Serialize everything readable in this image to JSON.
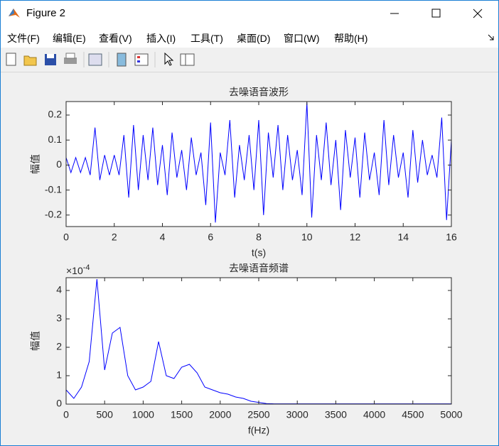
{
  "window": {
    "title": "Figure 2",
    "menu": [
      "文件(F)",
      "编辑(E)",
      "查看(V)",
      "插入(I)",
      "工具(T)",
      "桌面(D)",
      "窗口(W)",
      "帮助(H)"
    ]
  },
  "chart_data": [
    {
      "type": "line",
      "title": "去噪语音波形",
      "x_label": "t(s)",
      "y_label": "幅值",
      "color": "#0000ff",
      "x": [
        0,
        0.2,
        0.4,
        0.6,
        0.8,
        1.0,
        1.2,
        1.4,
        1.6,
        1.8,
        2.0,
        2.2,
        2.4,
        2.6,
        2.8,
        3.0,
        3.2,
        3.4,
        3.6,
        3.8,
        4.0,
        4.2,
        4.4,
        4.6,
        4.8,
        5.0,
        5.2,
        5.4,
        5.6,
        5.8,
        6.0,
        6.2,
        6.4,
        6.6,
        6.8,
        7.0,
        7.2,
        7.4,
        7.6,
        7.8,
        8.0,
        8.2,
        8.4,
        8.6,
        8.8,
        9.0,
        9.2,
        9.4,
        9.6,
        9.8,
        10.0,
        10.2,
        10.4,
        10.6,
        10.8,
        11.0,
        11.2,
        11.4,
        11.6,
        11.8,
        12.0,
        12.2,
        12.4,
        12.6,
        12.8,
        13.0,
        13.2,
        13.4,
        13.6,
        13.8,
        14.0,
        14.2,
        14.4,
        14.6,
        14.8,
        15.0,
        15.2,
        15.4,
        15.6,
        15.8,
        16.0
      ],
      "values": [
        0.03,
        -0.03,
        0.03,
        -0.03,
        0.03,
        -0.04,
        0.15,
        -0.06,
        0.04,
        -0.04,
        0.04,
        -0.04,
        0.12,
        -0.13,
        0.16,
        -0.1,
        0.12,
        -0.06,
        0.15,
        -0.08,
        0.08,
        -0.12,
        0.13,
        -0.05,
        0.06,
        -0.1,
        0.11,
        -0.04,
        0.05,
        -0.16,
        0.17,
        -0.23,
        0.05,
        -0.04,
        0.18,
        -0.13,
        0.08,
        -0.06,
        0.12,
        -0.1,
        0.18,
        -0.2,
        0.13,
        -0.05,
        0.16,
        -0.1,
        0.12,
        -0.06,
        0.06,
        -0.12,
        0.25,
        -0.21,
        0.12,
        -0.06,
        0.17,
        -0.08,
        0.1,
        -0.18,
        0.14,
        -0.05,
        0.11,
        -0.13,
        0.13,
        -0.06,
        0.05,
        -0.12,
        0.18,
        -0.08,
        0.12,
        -0.05,
        0.05,
        -0.13,
        0.14,
        -0.07,
        0.1,
        -0.04,
        0.04,
        -0.05,
        0.19,
        -0.22,
        0.1
      ],
      "xlim": [
        0,
        16
      ],
      "xticks": [
        0,
        2,
        4,
        6,
        8,
        10,
        12,
        14,
        16
      ],
      "ylim": [
        -0.246,
        0.254
      ],
      "yticks": [
        -0.2,
        -0.1,
        0,
        0.1,
        0.2
      ]
    },
    {
      "type": "line",
      "title": "去噪语音频谱",
      "x_label": "f(Hz)",
      "y_label": "幅值",
      "color": "#0000ff",
      "y_offset_text": "×10",
      "y_offset_exponent": "-4",
      "x": [
        0,
        100,
        200,
        300,
        400,
        500,
        600,
        700,
        800,
        900,
        1000,
        1100,
        1200,
        1300,
        1400,
        1500,
        1600,
        1700,
        1800,
        1900,
        2000,
        2100,
        2200,
        2300,
        2400,
        2500,
        2600,
        2700,
        2800,
        2900,
        3000,
        3100,
        3200,
        3300,
        3400,
        3500,
        3600,
        3700,
        3800,
        3900,
        4000,
        4100,
        4200,
        4300,
        4400,
        4500,
        4600,
        4700,
        4800,
        4900,
        5000
      ],
      "values": [
        0.5,
        0.2,
        0.6,
        1.5,
        4.4,
        1.2,
        2.5,
        2.7,
        1.0,
        0.5,
        0.6,
        0.8,
        2.2,
        1.0,
        0.9,
        1.3,
        1.4,
        1.1,
        0.6,
        0.5,
        0.4,
        0.35,
        0.25,
        0.2,
        0.1,
        0.06,
        0.02,
        0.01,
        0.01,
        0.01,
        0.01,
        0.01,
        0.01,
        0.01,
        0.01,
        0.01,
        0.01,
        0.01,
        0.01,
        0.01,
        0.01,
        0.01,
        0.01,
        0.01,
        0.01,
        0.01,
        0.01,
        0.01,
        0.01,
        0.01,
        0.01
      ],
      "xlim": [
        0,
        5000
      ],
      "xticks": [
        0,
        500,
        1000,
        1500,
        2000,
        2500,
        3000,
        3500,
        4000,
        4500,
        5000
      ],
      "ylim": [
        0,
        4.45
      ],
      "yticks": [
        0,
        1,
        2,
        3,
        4
      ]
    }
  ]
}
